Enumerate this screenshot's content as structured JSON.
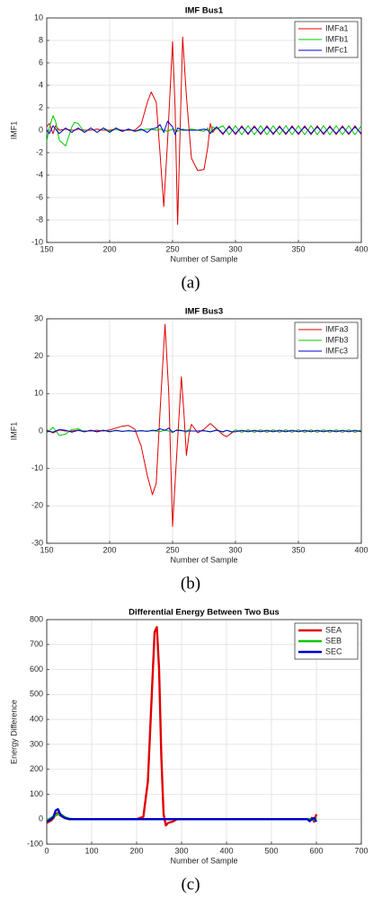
{
  "chart_data": [
    {
      "type": "line",
      "title": "IMF Bus1",
      "xlabel": "Number of Sample",
      "ylabel": "IMF1",
      "caption": "(a)",
      "x": [
        150,
        152,
        155,
        157,
        160,
        165,
        170,
        172,
        175,
        180,
        185,
        190,
        195,
        200,
        205,
        210,
        215,
        220,
        225,
        230,
        233,
        237,
        240,
        243,
        246,
        250,
        252,
        254,
        256,
        258,
        261,
        265,
        270,
        275,
        278,
        280,
        282,
        285,
        290,
        295,
        300,
        305,
        310,
        315,
        320,
        325,
        330,
        335,
        340,
        345,
        350,
        355,
        360,
        365,
        370,
        375,
        380,
        385,
        390,
        395,
        400
      ],
      "series": [
        {
          "name": "IMFa1",
          "color": "#e00000",
          "values": [
            0.3,
            0.6,
            -0.3,
            0.4,
            0,
            0.1,
            0,
            0,
            0.1,
            0,
            0,
            0.1,
            0,
            0,
            0.1,
            0,
            0,
            0,
            0.5,
            2.5,
            3.4,
            2.5,
            -2,
            -6.8,
            -1,
            7.9,
            2,
            -8.4,
            0,
            8.3,
            3,
            -2.5,
            -3.6,
            -3.5,
            -1.5,
            0.6,
            -0.2,
            0.3,
            -0.4,
            0.4,
            -0.4,
            0.4,
            -0.4,
            0.4,
            -0.4,
            0.4,
            -0.4,
            0.4,
            -0.4,
            0.4,
            -0.4,
            0.4,
            -0.4,
            0.4,
            -0.4,
            0.4,
            -0.4,
            0.4,
            -0.4,
            0.4,
            -0.4
          ]
        },
        {
          "name": "IMFb1",
          "color": "#00c800",
          "values": [
            -1,
            0.2,
            1.3,
            0.8,
            -0.9,
            -1.4,
            0.3,
            0.7,
            0.6,
            -0.2,
            0.2,
            -0.2,
            0.2,
            -0.1,
            0.1,
            -0.1,
            0.1,
            -0.1,
            0,
            0.1,
            0.1,
            0,
            0.1,
            0,
            -0.1,
            0.1,
            0,
            -0.1,
            0,
            0.1,
            0,
            0.1,
            0,
            -0.1,
            0.2,
            -0.3,
            0.3,
            0.1,
            0.4,
            -0.4,
            0.4,
            -0.4,
            0.4,
            -0.4,
            0.4,
            -0.4,
            0.4,
            -0.4,
            0.4,
            -0.4,
            0.4,
            -0.4,
            0.4,
            -0.4,
            0.4,
            -0.4,
            0.4,
            -0.4,
            0.4,
            -0.4,
            0.4
          ]
        },
        {
          "name": "IMFc1",
          "color": "#0000d0",
          "values": [
            0,
            -0.3,
            0.4,
            0.1,
            -0.3,
            0.2,
            -0.2,
            0,
            0.2,
            -0.2,
            0.2,
            -0.2,
            0.2,
            -0.2,
            0.2,
            -0.1,
            0.1,
            -0.1,
            0.1,
            -0.2,
            0.1,
            0.2,
            0.5,
            -0.2,
            0.8,
            0.3,
            -0.4,
            0.2,
            0.1,
            0,
            0,
            0,
            0,
            0.1,
            0,
            -0.3,
            0,
            0.3,
            -0.3,
            0.3,
            -0.3,
            0.3,
            -0.3,
            0.3,
            -0.3,
            0.3,
            -0.3,
            0.3,
            -0.3,
            0.3,
            -0.3,
            0.3,
            -0.3,
            0.3,
            -0.3,
            0.3,
            -0.3,
            0.3,
            -0.3,
            0.3,
            -0.3
          ]
        }
      ],
      "xlim": [
        150,
        400
      ],
      "xticks": [
        150,
        200,
        250,
        300,
        350,
        400
      ],
      "ylim": [
        -10,
        10
      ],
      "yticks": [
        -10,
        -8,
        -6,
        -4,
        -2,
        0,
        2,
        4,
        6,
        8,
        10
      ],
      "grid": true,
      "legend": "upper right"
    },
    {
      "type": "line",
      "title": "IMF Bus3",
      "xlabel": "Number of Sample",
      "ylabel": "IMF1",
      "caption": "(b)",
      "x": [
        150,
        155,
        160,
        165,
        170,
        175,
        180,
        185,
        190,
        195,
        200,
        205,
        210,
        215,
        220,
        225,
        230,
        234,
        237,
        240,
        244,
        247,
        250,
        253,
        257,
        259,
        261,
        263,
        265,
        270,
        275,
        280,
        285,
        290,
        293,
        297,
        300,
        305,
        310,
        315,
        320,
        325,
        330,
        335,
        340,
        345,
        350,
        355,
        360,
        365,
        370,
        375,
        380,
        385,
        390,
        395,
        400
      ],
      "series": [
        {
          "name": "IMFa3",
          "color": "#e00000",
          "values": [
            0.3,
            -0.5,
            0.3,
            0,
            0,
            0.2,
            0,
            0,
            0.2,
            0,
            0.3,
            0.8,
            1.3,
            1.5,
            0.5,
            -4,
            -12,
            -17,
            -14,
            5,
            28.5,
            10,
            -25.5,
            -8,
            14.5,
            5,
            -6.5,
            -1,
            1.8,
            -0.5,
            0.5,
            2,
            0.5,
            -1,
            -1.5,
            -0.5,
            0.3,
            -0.3,
            0.3,
            -0.3,
            0.3,
            -0.3,
            0.3,
            -0.3,
            0.3,
            -0.3,
            0.3,
            -0.3,
            0.3,
            -0.3,
            0.3,
            -0.3,
            0.3,
            -0.3,
            0.3,
            -0.3,
            0.3
          ]
        },
        {
          "name": "IMFb3",
          "color": "#00c800",
          "values": [
            -0.5,
            1,
            -1.2,
            -0.8,
            0.4,
            0.6,
            -0.2,
            0.2,
            -0.2,
            0.2,
            -0.1,
            0.1,
            -0.1,
            0.1,
            0,
            0.1,
            0,
            0.1,
            0,
            -0.2,
            0.3,
            0,
            -0.4,
            0.3,
            0.2,
            0,
            -0.3,
            0.4,
            0,
            0,
            0.1,
            -0.2,
            0.3,
            -0.3,
            0.2,
            -0.3,
            0.3,
            -0.3,
            0.3,
            -0.3,
            0.3,
            -0.3,
            0.3,
            -0.3,
            0.3,
            -0.3,
            0.3,
            -0.3,
            0.3,
            -0.3,
            0.3,
            -0.3,
            0.3,
            -0.3,
            0.3,
            -0.3,
            0.3
          ]
        },
        {
          "name": "IMFc3",
          "color": "#0000d0",
          "values": [
            0,
            -0.3,
            0.4,
            0.2,
            -0.3,
            0.2,
            -0.2,
            0.2,
            -0.2,
            0.2,
            -0.2,
            0.2,
            -0.1,
            0.1,
            -0.1,
            0.1,
            -0.1,
            0.2,
            0.1,
            0.6,
            0.2,
            0.8,
            -0.3,
            0.2,
            0.1,
            0,
            0,
            0,
            0,
            0,
            0.1,
            -0.2,
            0.2,
            -0.2,
            0.2,
            -0.2,
            -0.2,
            0.2,
            -0.2,
            0.2,
            -0.2,
            0.2,
            -0.2,
            0.2,
            -0.2,
            0.2,
            -0.2,
            0.2,
            -0.2,
            0.2,
            -0.2,
            0.2,
            -0.2,
            0.2,
            -0.2,
            0.2,
            -0.2
          ]
        }
      ],
      "xlim": [
        150,
        400
      ],
      "xticks": [
        150,
        200,
        250,
        300,
        350,
        400
      ],
      "ylim": [
        -30,
        30
      ],
      "yticks": [
        -30,
        -20,
        -10,
        0,
        10,
        20,
        30
      ],
      "grid": true,
      "legend": "upper right"
    },
    {
      "type": "line",
      "title": "Differential Energy Between Two Bus",
      "xlabel": "Number of Sample",
      "ylabel": "Energy Difference",
      "caption": "(c)",
      "x": [
        0,
        5,
        10,
        15,
        20,
        25,
        30,
        35,
        40,
        50,
        60,
        80,
        100,
        150,
        200,
        215,
        225,
        235,
        240,
        245,
        250,
        255,
        260,
        265,
        270,
        280,
        290,
        300,
        350,
        400,
        450,
        500,
        550,
        580,
        585,
        590,
        595,
        600
      ],
      "series": [
        {
          "name": "SEA",
          "color": "#e00000",
          "values": [
            -15,
            -10,
            -5,
            5,
            20,
            25,
            15,
            10,
            5,
            0,
            0,
            0,
            0,
            0,
            0,
            10,
            150,
            550,
            750,
            770,
            600,
            250,
            20,
            -25,
            -15,
            -10,
            0,
            0,
            0,
            0,
            0,
            0,
            0,
            0,
            -5,
            5,
            -10,
            20
          ]
        },
        {
          "name": "SEB",
          "color": "#00c800",
          "values": [
            -5,
            0,
            5,
            10,
            15,
            20,
            20,
            15,
            8,
            2,
            0,
            0,
            0,
            0,
            0,
            0,
            0,
            0,
            0,
            0,
            0,
            0,
            0,
            0,
            0,
            0,
            0,
            0,
            0,
            0,
            0,
            0,
            0,
            0,
            0,
            0,
            -3,
            5
          ]
        },
        {
          "name": "SEC",
          "color": "#0000d0",
          "values": [
            -10,
            -5,
            0,
            10,
            35,
            40,
            20,
            10,
            5,
            0,
            0,
            0,
            0,
            0,
            0,
            0,
            0,
            0,
            0,
            0,
            0,
            0,
            0,
            0,
            0,
            0,
            0,
            0,
            0,
            0,
            0,
            0,
            0,
            0,
            -8,
            0,
            5,
            -10
          ]
        }
      ],
      "xlim": [
        0,
        700
      ],
      "xticks": [
        0,
        100,
        200,
        300,
        400,
        500,
        600,
        700
      ],
      "ylim": [
        -100,
        800
      ],
      "yticks": [
        -100,
        0,
        100,
        200,
        300,
        400,
        500,
        600,
        700,
        800
      ],
      "grid": true,
      "legend": "upper right"
    }
  ]
}
